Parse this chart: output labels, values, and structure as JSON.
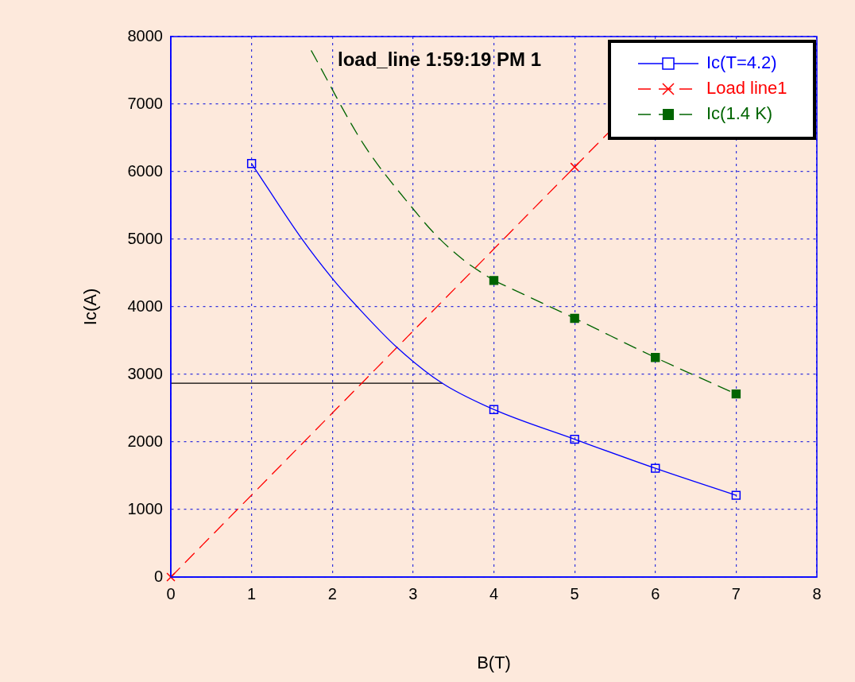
{
  "chart_data": {
    "type": "line",
    "title": "load_line 1:59:19 PM 1",
    "xlabel": "B(T)",
    "ylabel": "Ic(A)",
    "xlim": [
      0,
      8
    ],
    "xticks": [
      0,
      1,
      2,
      3,
      4,
      5,
      6,
      7,
      8
    ],
    "ylim": [
      0,
      8000
    ],
    "yticks": [
      0,
      1000,
      2000,
      3000,
      4000,
      5000,
      6000,
      7000,
      8000
    ],
    "grid": true,
    "legend": "top right",
    "line_style": "solid",
    "marker": "none",
    "series": [
      {
        "name": "Ic(T=4.2)",
        "type": "scatter",
        "color": "#0000ff",
        "marker": "square",
        "line_style": "solid",
        "x": [
          1,
          4,
          5,
          6,
          7
        ],
        "values": [
          6120,
          2480,
          2040,
          1610,
          1210
        ]
      },
      {
        "color": "#0000ff",
        "x": [
          1,
          1.62,
          2,
          2.31,
          2.8,
          3.36,
          4,
          5,
          6,
          7
        ],
        "values": [
          6120,
          5010,
          4420,
          4000,
          3400,
          2870,
          2480,
          2040,
          1610,
          1210
        ]
      },
      {
        "name": "Load line1",
        "color": "#ff0000",
        "marker": "cross",
        "line_style": "dashed",
        "x": [
          0,
          5
        ],
        "values": [
          0,
          6070
        ]
      },
      {
        "color": "#ff0000",
        "line_style": "dashed",
        "x": [
          5,
          5.43
        ],
        "values": [
          6070,
          6590
        ]
      },
      {
        "name": "Ic(1.4 K)",
        "color": "#006400",
        "marker": "square",
        "line_style": "dashed",
        "x": [
          4,
          5,
          6,
          7
        ],
        "values": [
          4390,
          3830,
          3250,
          2710
        ]
      },
      {
        "color": "#006400",
        "line_style": "dashed",
        "x": [
          1.74,
          2.38,
          3,
          3.3,
          3.66,
          4
        ],
        "values": [
          7790,
          6420,
          5450,
          5040,
          4660,
          4390
        ]
      },
      {
        "color": "#000000",
        "x": [
          0,
          3.36
        ],
        "values": [
          2870,
          2870
        ]
      }
    ]
  }
}
